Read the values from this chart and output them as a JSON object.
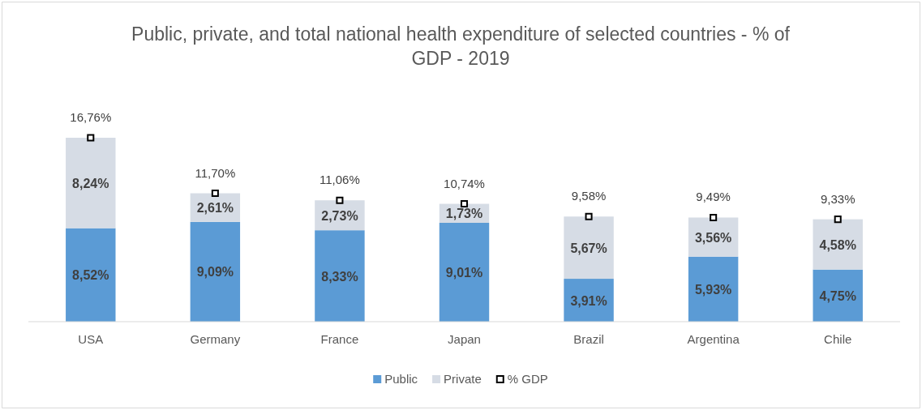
{
  "chart_data": {
    "type": "bar",
    "title": "Public, private, and total national health expenditure of selected countries - % of GDP - 2019",
    "categories": [
      "USA",
      "Germany",
      "France",
      "Japan",
      "Brazil",
      "Argentina",
      "Chile"
    ],
    "stacked": true,
    "legend": "bottom",
    "series": [
      {
        "name": "Public",
        "color": "#5b9bd5",
        "values": [
          8.52,
          9.09,
          8.33,
          9.01,
          3.91,
          5.93,
          4.75
        ],
        "value_labels": [
          "8,52%",
          "9,09%",
          "8,33%",
          "9,01%",
          "3,91%",
          "5,93%",
          "4,75%"
        ]
      },
      {
        "name": "Private",
        "color": "#d6dce5",
        "values": [
          8.24,
          2.61,
          2.73,
          1.73,
          5.67,
          3.56,
          4.58
        ],
        "value_labels": [
          "8,24%",
          "2,61%",
          "2,73%",
          "1,73%",
          "5,67%",
          "3,56%",
          "4,58%"
        ]
      },
      {
        "name": "% GDP",
        "type": "scatter",
        "marker": "square",
        "color": "#000000",
        "values": [
          16.76,
          11.7,
          11.06,
          10.74,
          9.58,
          9.49,
          9.33
        ],
        "value_labels": [
          "16,76%",
          "11,70%",
          "11,06%",
          "10,74%",
          "9,58%",
          "9,49%",
          "9,33%"
        ]
      }
    ]
  }
}
